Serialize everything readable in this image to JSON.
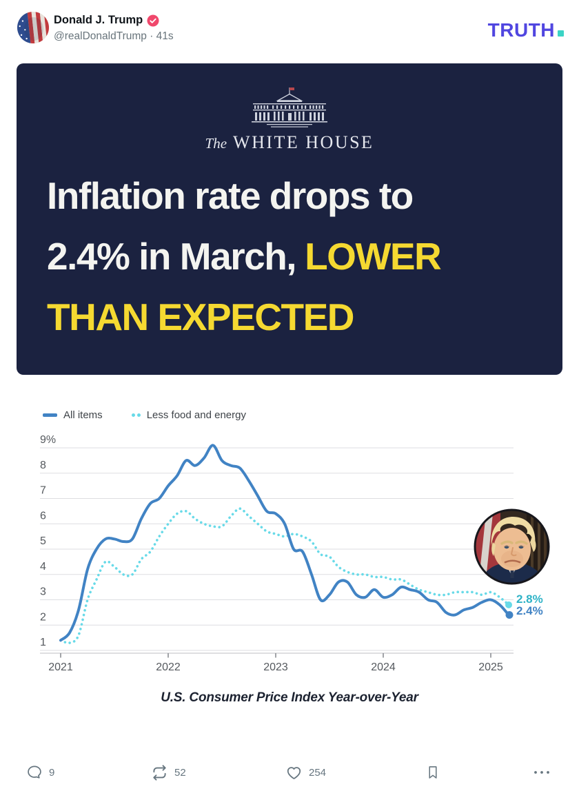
{
  "header": {
    "display_name": "Donald J. Trump",
    "handle_line": "@realDonaldTrump · 41s",
    "logo_text": "TRUTH",
    "verified_color": "#f0486c",
    "logo_color": "#5046e0",
    "logo_dot_color": "#3bd4c5"
  },
  "media_card": {
    "bg_color": "#1b2240",
    "wordmark_prefix": "The",
    "wordmark": "WHITE HOUSE",
    "headline_line1": "Inflation rate drops to",
    "headline_line2_white": "2.4% in March,",
    "headline_line2_yellow": "LOWER",
    "headline_line3_yellow": "THAN EXPECTED",
    "yellow_color": "#f5d931",
    "white_color": "#f4f4f0"
  },
  "chart_data": {
    "type": "line",
    "title": "U.S. Consumer Price Index Year-over-Year",
    "x_start": "2021-01",
    "x_end": "2025-03",
    "x_tick_labels": [
      "2021",
      "2022",
      "2023",
      "2024",
      "2025"
    ],
    "y_ticks": [
      "9%",
      "8",
      "7",
      "6",
      "5",
      "4",
      "3",
      "2",
      "1"
    ],
    "ylim": [
      1,
      9
    ],
    "grid": true,
    "legend_position": "top-left",
    "series": [
      {
        "name": "All items",
        "style": "solid",
        "color": "#4183c4",
        "end_label": "2.4%",
        "end_label_color": "#4183c4",
        "values": [
          1.4,
          1.7,
          2.6,
          4.2,
          5.0,
          5.4,
          5.4,
          5.3,
          5.4,
          6.2,
          6.8,
          7.0,
          7.5,
          7.9,
          8.5,
          8.3,
          8.6,
          9.1,
          8.5,
          8.3,
          8.2,
          7.7,
          7.1,
          6.5,
          6.4,
          6.0,
          5.0,
          4.9,
          4.0,
          3.0,
          3.2,
          3.7,
          3.7,
          3.2,
          3.1,
          3.4,
          3.1,
          3.2,
          3.5,
          3.4,
          3.3,
          3.0,
          2.9,
          2.5,
          2.4,
          2.6,
          2.7,
          2.9,
          3.0,
          2.8,
          2.4
        ]
      },
      {
        "name": "Less food and energy",
        "style": "dotted",
        "color": "#68dae8",
        "end_label": "2.8%",
        "end_label_color": "#2fb3c7",
        "values": [
          1.4,
          1.3,
          1.6,
          3.0,
          3.8,
          4.5,
          4.3,
          4.0,
          4.0,
          4.6,
          4.9,
          5.5,
          6.0,
          6.4,
          6.5,
          6.2,
          6.0,
          5.9,
          5.9,
          6.3,
          6.6,
          6.3,
          6.0,
          5.7,
          5.6,
          5.5,
          5.6,
          5.5,
          5.3,
          4.8,
          4.7,
          4.3,
          4.1,
          4.0,
          4.0,
          3.9,
          3.9,
          3.8,
          3.8,
          3.6,
          3.4,
          3.3,
          3.2,
          3.2,
          3.3,
          3.3,
          3.3,
          3.2,
          3.3,
          3.1,
          2.8
        ]
      }
    ]
  },
  "actions": {
    "reply_count": "9",
    "retruth_count": "52",
    "like_count": "254"
  }
}
